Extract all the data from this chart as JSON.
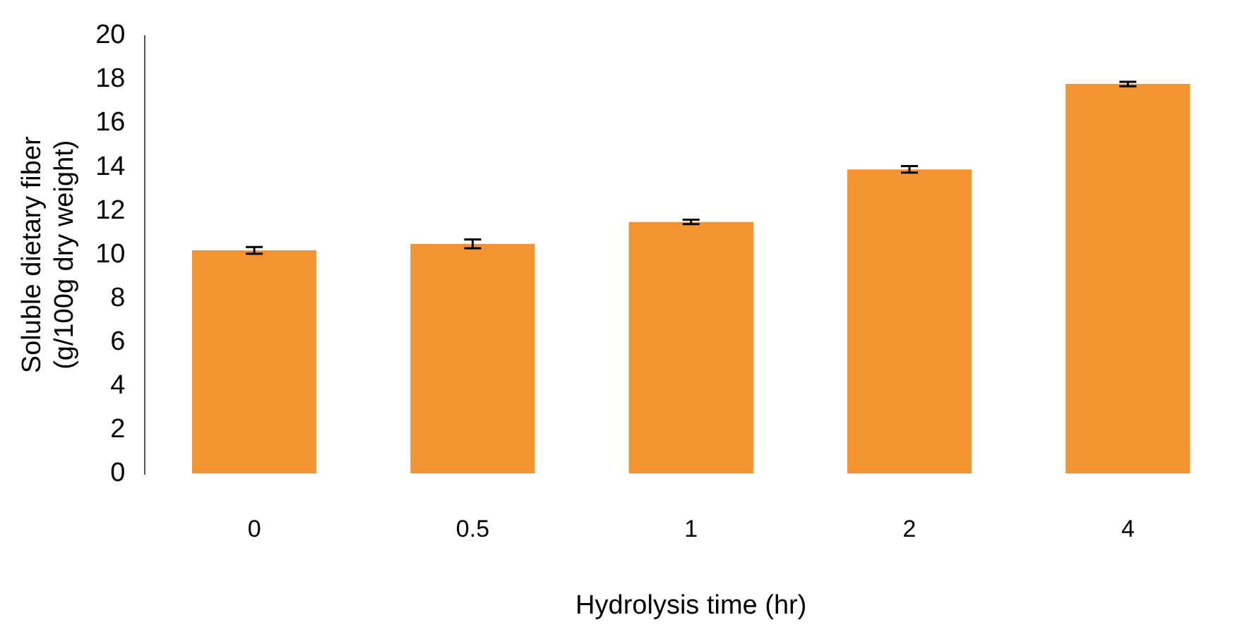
{
  "chart_data": {
    "type": "bar",
    "xlabel": "Hydrolysis time (hr)",
    "ylabel": "Soluble dietary fiber (g/100g dry weight)",
    "categories": [
      "0",
      "0.5",
      "1",
      "2",
      "4"
    ],
    "values": [
      10.2,
      10.5,
      11.5,
      13.9,
      17.8
    ],
    "errors": [
      0.15,
      0.2,
      0.1,
      0.15,
      0.1
    ],
    "color": "#f39331",
    "ylim": [
      0,
      20
    ],
    "yticks": [
      0,
      2,
      4,
      6,
      8,
      10,
      12,
      14,
      16,
      18,
      20
    ],
    "grid": false,
    "legend": false
  }
}
